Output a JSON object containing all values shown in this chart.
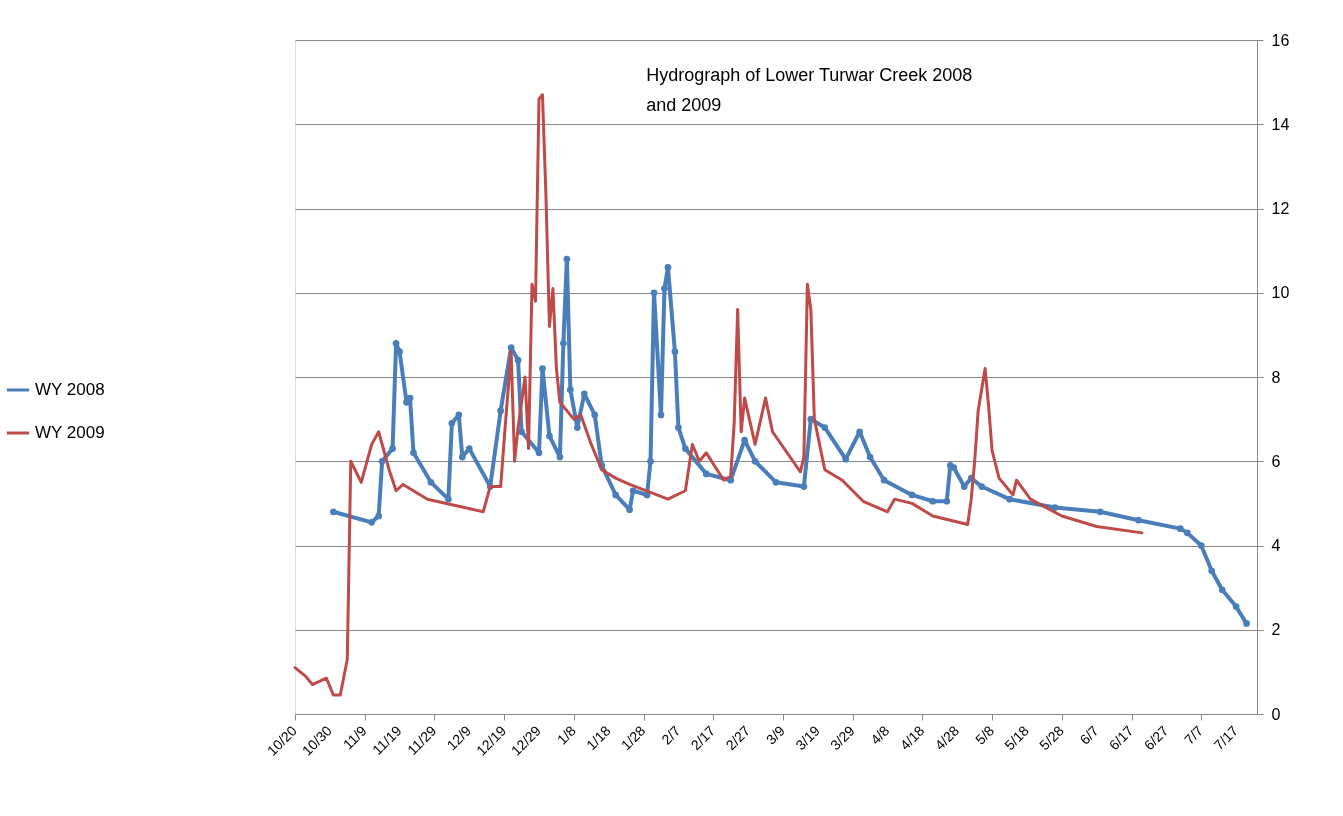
{
  "chart_data": {
    "type": "line",
    "title": "Hydrograph  of Lower Turwar Creek 2008 and 2009",
    "series": [
      {
        "name": "WY 2008",
        "color": "#4a7ebb",
        "marker": "circle",
        "x": [
          "2008-10-31",
          "2008-11-11",
          "2008-11-13",
          "2008-11-14",
          "2008-11-17",
          "2008-11-18",
          "2008-11-19",
          "2008-11-21",
          "2008-11-22",
          "2008-11-23",
          "2008-11-28",
          "2008-12-03",
          "2008-12-04",
          "2008-12-06",
          "2008-12-07",
          "2008-12-09",
          "2008-12-15",
          "2008-12-18",
          "2008-12-21",
          "2008-12-23",
          "2008-12-24",
          "2008-12-29",
          "2008-12-30",
          "2009-01-01",
          "2009-01-04",
          "2009-01-05",
          "2009-01-06",
          "2009-01-07",
          "2009-01-09",
          "2009-01-11",
          "2009-01-14",
          "2009-01-16",
          "2009-01-20",
          "2009-01-24",
          "2009-01-25",
          "2009-01-29",
          "2009-01-30",
          "2009-01-31",
          "2009-02-02",
          "2009-02-03",
          "2009-02-04",
          "2009-02-06",
          "2009-02-07",
          "2009-02-09",
          "2009-02-15",
          "2009-02-22",
          "2009-02-26",
          "2009-03-01",
          "2009-03-07",
          "2009-03-15",
          "2009-03-17",
          "2009-03-21",
          "2009-03-27",
          "2009-03-31",
          "2009-04-03",
          "2009-04-07",
          "2009-04-15",
          "2009-04-21",
          "2009-04-25",
          "2009-04-26",
          "2009-04-27",
          "2009-04-30",
          "2009-05-02",
          "2009-05-05",
          "2009-05-13",
          "2009-05-26",
          "2009-06-08",
          "2009-06-19",
          "2009-07-01",
          "2009-07-03",
          "2009-07-07",
          "2009-07-10",
          "2009-07-13",
          "2009-07-17",
          "2009-07-20"
        ],
        "values": [
          4.8,
          4.55,
          4.7,
          6.0,
          6.3,
          8.8,
          8.6,
          7.4,
          7.5,
          6.2,
          5.5,
          5.1,
          6.9,
          7.1,
          6.1,
          6.3,
          5.4,
          7.2,
          8.7,
          8.4,
          6.7,
          6.2,
          8.2,
          6.6,
          6.1,
          8.8,
          10.8,
          7.7,
          6.8,
          7.6,
          7.1,
          5.9,
          5.2,
          4.85,
          5.3,
          5.2,
          6.0,
          10.0,
          7.1,
          10.1,
          10.6,
          8.6,
          6.8,
          6.3,
          5.7,
          5.55,
          6.5,
          6.0,
          5.5,
          5.4,
          7.0,
          6.8,
          6.05,
          6.7,
          6.1,
          5.55,
          5.2,
          5.05,
          5.05,
          5.9,
          5.85,
          5.4,
          5.6,
          5.4,
          5.1,
          4.9,
          4.8,
          4.6,
          4.4,
          4.3,
          4.0,
          3.4,
          2.95,
          2.55,
          2.15
        ]
      },
      {
        "name": "WY 2009",
        "color": "#be4b48",
        "marker": "none",
        "x": [
          "2008-10-20",
          "2008-10-23",
          "2008-10-25",
          "2008-10-29",
          "2008-10-31",
          "2008-11-02",
          "2008-11-04",
          "2008-11-05",
          "2008-11-08",
          "2008-11-11",
          "2008-11-13",
          "2008-11-16",
          "2008-11-18",
          "2008-11-20",
          "2008-11-27",
          "2008-12-05",
          "2008-12-13",
          "2008-12-15",
          "2008-12-18",
          "2008-12-19",
          "2008-12-21",
          "2008-12-22",
          "2008-12-23",
          "2008-12-25",
          "2008-12-26",
          "2008-12-27",
          "2008-12-28",
          "2008-12-29",
          "2008-12-30",
          "2008-12-31",
          "2009-01-01",
          "2009-01-02",
          "2009-01-03",
          "2009-01-04",
          "2009-01-08",
          "2009-01-10",
          "2009-01-13",
          "2009-01-16",
          "2009-01-20",
          "2009-01-24",
          "2009-02-04",
          "2009-02-09",
          "2009-02-11",
          "2009-02-13",
          "2009-02-15",
          "2009-02-20",
          "2009-02-22",
          "2009-02-23",
          "2009-02-24",
          "2009-02-25",
          "2009-02-26",
          "2009-03-01",
          "2009-03-04",
          "2009-03-06",
          "2009-03-14",
          "2009-03-15",
          "2009-03-16",
          "2009-03-17",
          "2009-03-18",
          "2009-03-21",
          "2009-03-26",
          "2009-04-01",
          "2009-04-08",
          "2009-04-10",
          "2009-04-15",
          "2009-04-21",
          "2009-04-26",
          "2009-05-01",
          "2009-05-02",
          "2009-05-03",
          "2009-05-04",
          "2009-05-06",
          "2009-05-07",
          "2009-05-08",
          "2009-05-10",
          "2009-05-14",
          "2009-05-15",
          "2009-05-19",
          "2009-05-28",
          "2009-06-07",
          "2009-06-20"
        ],
        "values": [
          1.1,
          0.9,
          0.7,
          0.85,
          0.45,
          0.45,
          1.3,
          6.0,
          5.5,
          6.4,
          6.7,
          5.8,
          5.3,
          5.45,
          5.1,
          4.95,
          4.8,
          5.4,
          5.4,
          6.5,
          8.6,
          6.0,
          6.8,
          8.0,
          6.3,
          10.2,
          9.8,
          14.6,
          14.7,
          12.3,
          9.2,
          10.1,
          8.2,
          7.4,
          7.0,
          7.1,
          6.4,
          5.8,
          5.6,
          5.45,
          5.1,
          5.3,
          6.4,
          6.0,
          6.2,
          5.55,
          5.65,
          6.9,
          9.6,
          6.7,
          7.5,
          6.4,
          7.5,
          6.7,
          5.75,
          6.1,
          10.2,
          9.6,
          7.0,
          5.8,
          5.55,
          5.05,
          4.8,
          5.1,
          5.0,
          4.7,
          4.6,
          4.5,
          5.1,
          6.0,
          7.2,
          8.2,
          7.3,
          6.25,
          5.6,
          5.2,
          5.55,
          5.1,
          4.7,
          4.45,
          4.3
        ]
      }
    ],
    "xlim": [
      "2008-10-20",
      "2009-07-23"
    ],
    "xticks": [
      {
        "value": "2008-10-20",
        "label": "10/20"
      },
      {
        "value": "2008-10-30",
        "label": "10/30"
      },
      {
        "value": "2008-11-09",
        "label": "11/9"
      },
      {
        "value": "2008-11-19",
        "label": "11/19"
      },
      {
        "value": "2008-11-29",
        "label": "11/29"
      },
      {
        "value": "2008-12-09",
        "label": "12/9"
      },
      {
        "value": "2008-12-19",
        "label": "12/19"
      },
      {
        "value": "2008-12-29",
        "label": "12/29"
      },
      {
        "value": "2009-01-08",
        "label": "1/8"
      },
      {
        "value": "2009-01-18",
        "label": "1/18"
      },
      {
        "value": "2009-01-28",
        "label": "1/28"
      },
      {
        "value": "2009-02-07",
        "label": "2/7"
      },
      {
        "value": "2009-02-17",
        "label": "2/17"
      },
      {
        "value": "2009-02-27",
        "label": "2/27"
      },
      {
        "value": "2009-03-09",
        "label": "3/9"
      },
      {
        "value": "2009-03-19",
        "label": "3/19"
      },
      {
        "value": "2009-03-29",
        "label": "3/29"
      },
      {
        "value": "2009-04-08",
        "label": "4/8"
      },
      {
        "value": "2009-04-18",
        "label": "4/18"
      },
      {
        "value": "2009-04-28",
        "label": "4/28"
      },
      {
        "value": "2009-05-08",
        "label": "5/8"
      },
      {
        "value": "2009-05-18",
        "label": "5/18"
      },
      {
        "value": "2009-05-28",
        "label": "5/28"
      },
      {
        "value": "2009-06-07",
        "label": "6/7"
      },
      {
        "value": "2009-06-17",
        "label": "6/17"
      },
      {
        "value": "2009-06-27",
        "label": "6/27"
      },
      {
        "value": "2009-07-07",
        "label": "7/7"
      },
      {
        "value": "2009-07-17",
        "label": "7/17"
      }
    ],
    "ylim": [
      0,
      16
    ],
    "yticks": [
      0,
      2,
      4,
      6,
      8,
      10,
      12,
      14,
      16
    ],
    "grid": "y",
    "legend": "left",
    "line_style": "solid"
  }
}
